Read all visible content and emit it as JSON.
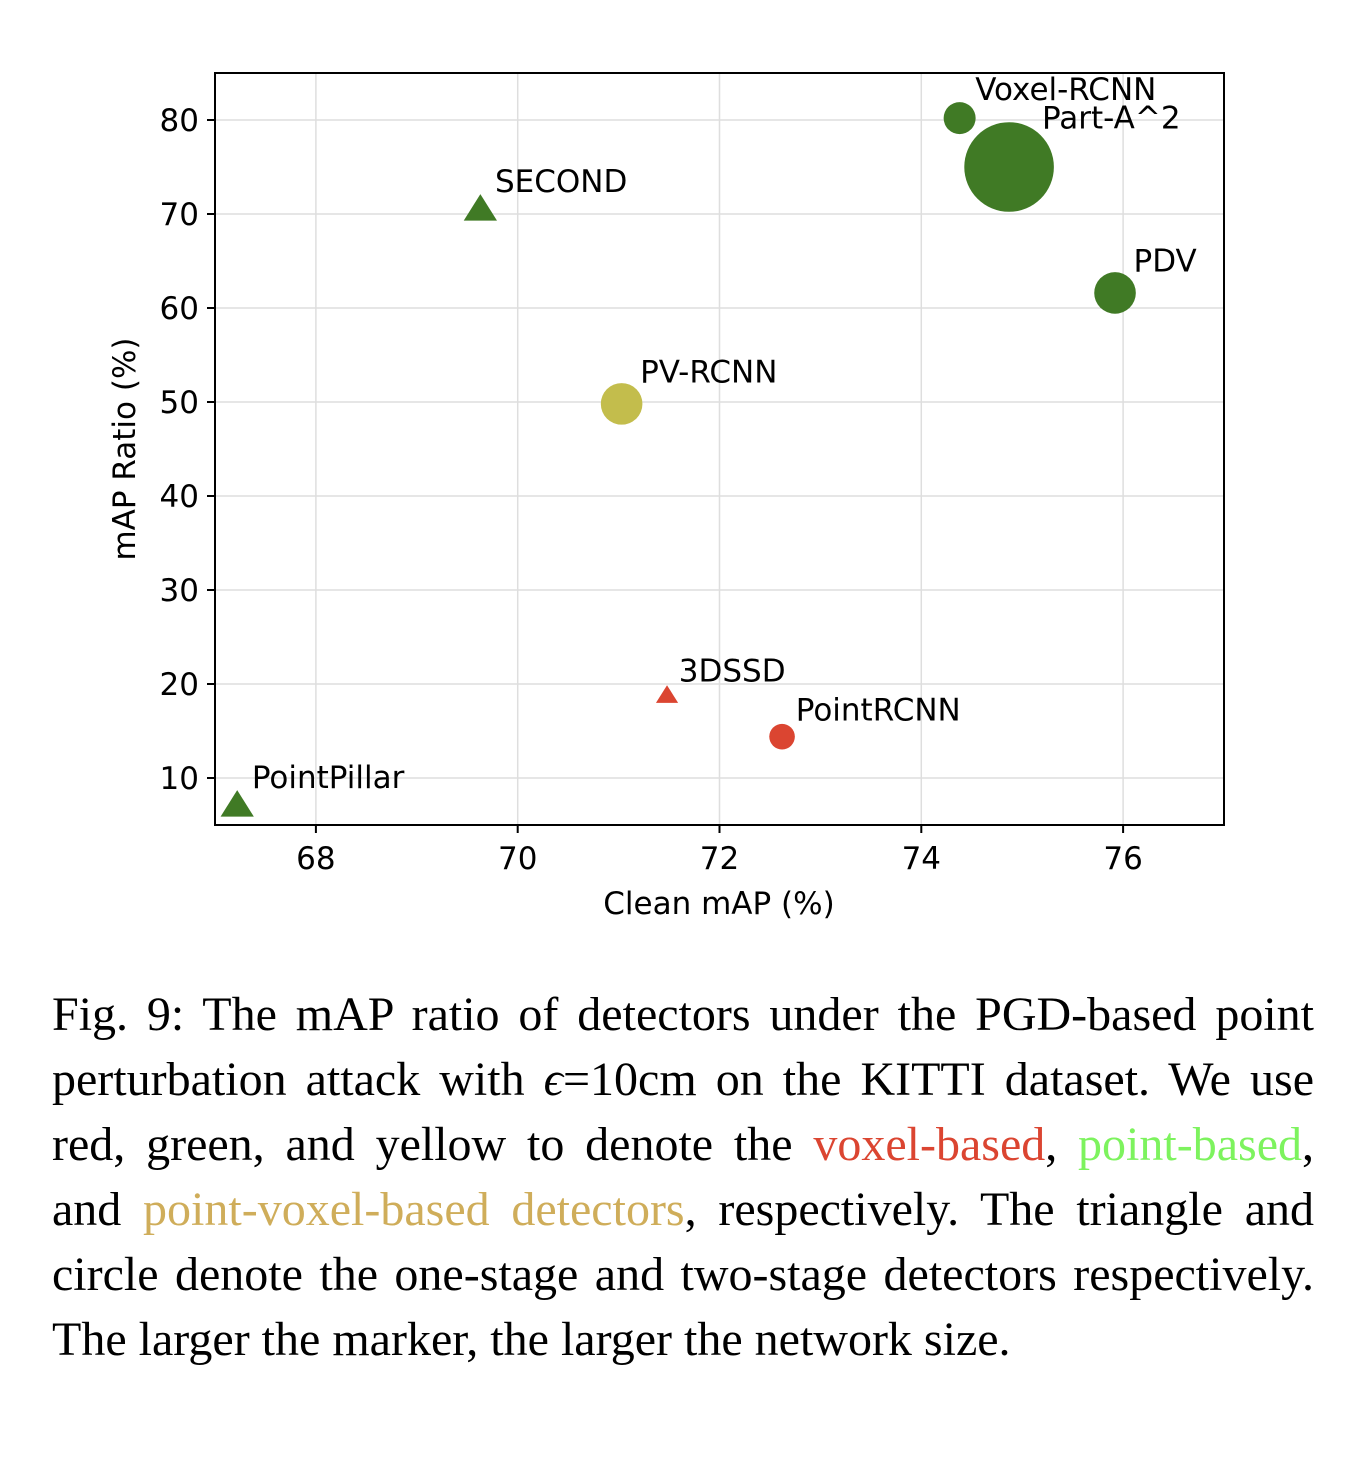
{
  "chart_data": {
    "type": "scatter",
    "xlabel": "Clean mAP (%)",
    "ylabel": "mAP Ratio (%)",
    "xlim": [
      67.0,
      77.0
    ],
    "ylim": [
      5.0,
      85.0
    ],
    "xticks": [
      68,
      70,
      72,
      74,
      76
    ],
    "yticks": [
      10,
      20,
      30,
      40,
      50,
      60,
      70,
      80
    ],
    "grid": true,
    "points": [
      {
        "label": "Voxel-RCNN",
        "x": 74.38,
        "y": 80.2,
        "marker": "circle",
        "size": 1.0,
        "color": "#407a25"
      },
      {
        "label": "Part-A^2",
        "x": 74.87,
        "y": 75.0,
        "marker": "circle",
        "size": 2.8,
        "color": "#407a25"
      },
      {
        "label": "SECOND",
        "x": 69.63,
        "y": 70.5,
        "marker": "triangle",
        "size": 0.9,
        "color": "#407a25"
      },
      {
        "label": "PDV",
        "x": 75.92,
        "y": 61.6,
        "marker": "circle",
        "size": 1.3,
        "color": "#407a25"
      },
      {
        "label": "PV-RCNN",
        "x": 71.03,
        "y": 49.8,
        "marker": "circle",
        "size": 1.3,
        "color": "#c3bd4c"
      },
      {
        "label": "3DSSD",
        "x": 71.48,
        "y": 18.8,
        "marker": "triangle",
        "size": 0.6,
        "color": "#db4531"
      },
      {
        "label": "PointRCNN",
        "x": 72.62,
        "y": 14.4,
        "marker": "circle",
        "size": 0.8,
        "color": "#db4531"
      },
      {
        "label": "PointPillar",
        "x": 67.22,
        "y": 7.1,
        "marker": "triangle",
        "size": 0.9,
        "color": "#407a25"
      }
    ]
  },
  "caption": {
    "prefix": "Fig. 9: The mAP ratio of detectors under the PGD-based point perturbation attack with ",
    "epsilon": "ϵ",
    "mid1": "=10cm on the KITTI dataset. We use red, green, and yellow to denote the ",
    "voxel": "voxel-based",
    "mid2": ", ",
    "point": "point-based",
    "mid3": ", and ",
    "pointvoxel": "point-voxel-based detectors",
    "suffix": ", respectively. The triangle and circle denote the one-stage and two-stage detectors respectively. The larger the marker, the larger the network size.",
    "colors": {
      "voxel": "#db4531",
      "point": "#7df35e",
      "pointvoxel": "#cfad5a"
    }
  }
}
